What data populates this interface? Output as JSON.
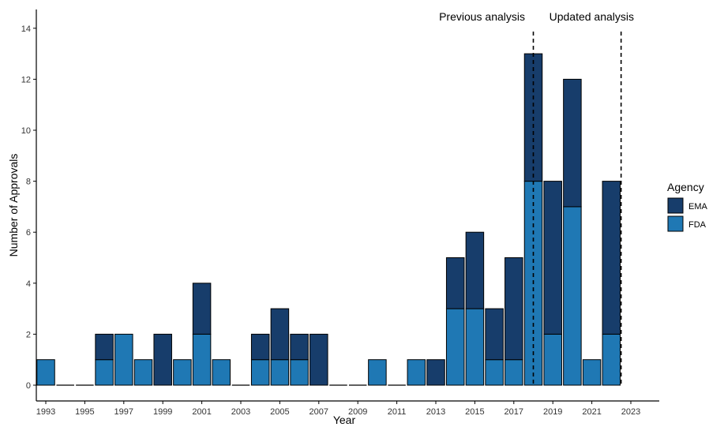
{
  "chart_data": {
    "type": "bar",
    "stacked": true,
    "xlabel": "Year",
    "ylabel": "Number of Approvals",
    "ylim": [
      0,
      14
    ],
    "yticks": [
      0,
      2,
      4,
      6,
      8,
      10,
      12,
      14
    ],
    "x": [
      1993,
      1994,
      1995,
      1996,
      1997,
      1998,
      1999,
      2000,
      2001,
      2002,
      2003,
      2004,
      2005,
      2006,
      2007,
      2008,
      2009,
      2010,
      2011,
      2012,
      2013,
      2014,
      2015,
      2016,
      2017,
      2018,
      2019,
      2020,
      2021,
      2022
    ],
    "xticks": [
      1993,
      1995,
      1997,
      1999,
      2001,
      2003,
      2005,
      2007,
      2009,
      2011,
      2013,
      2015,
      2017,
      2019,
      2021,
      2023
    ],
    "series": [
      {
        "name": "FDA",
        "color": "#1f78b4",
        "values": [
          1,
          0,
          0,
          1,
          2,
          1,
          0,
          1,
          2,
          1,
          0,
          1,
          1,
          1,
          0,
          0,
          0,
          1,
          0,
          1,
          0,
          3,
          3,
          1,
          1,
          8,
          2,
          7,
          1,
          2
        ]
      },
      {
        "name": "EMA",
        "color": "#173d6b",
        "values": [
          0,
          0,
          0,
          1,
          0,
          0,
          2,
          0,
          2,
          0,
          0,
          1,
          2,
          1,
          2,
          0,
          0,
          0,
          0,
          0,
          1,
          2,
          3,
          2,
          4,
          5,
          6,
          5,
          0,
          6
        ]
      }
    ],
    "legend": {
      "title": "Agency",
      "placement": "right",
      "entries": [
        "EMA",
        "FDA"
      ]
    },
    "annotations": [
      {
        "text": "Previous analysis",
        "x": 2018.0
      },
      {
        "text": "Updated analysis",
        "x": 2022.5
      }
    ],
    "grid": false
  }
}
